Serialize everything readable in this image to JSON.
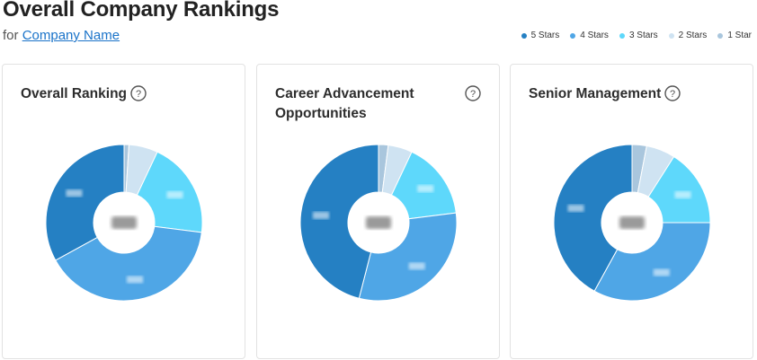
{
  "page": {
    "title": "Overall Company Rankings",
    "subtitle_prefix": "for",
    "company_link": "Company Name"
  },
  "legend": [
    {
      "label": "5 Stars",
      "color": "#2580c3"
    },
    {
      "label": "4 Stars",
      "color": "#4fa6e6"
    },
    {
      "label": "3 Stars",
      "color": "#5ed8fb"
    },
    {
      "label": "2 Stars",
      "color": "#cfe3f2"
    },
    {
      "label": "1 Star",
      "color": "#a9c6dd"
    }
  ],
  "cards": [
    {
      "title": "Overall Ranking",
      "help_icon": "question-circle-icon"
    },
    {
      "title": "Career Advancement Opportunities",
      "help_icon": "question-circle-icon"
    },
    {
      "title": "Senior Management",
      "help_icon": "question-circle-icon"
    }
  ],
  "chart_data": [
    {
      "type": "pie",
      "title": "Overall Ranking",
      "categories": [
        "5 Stars",
        "4 Stars",
        "3 Stars",
        "2 Stars",
        "1 Star"
      ],
      "values": [
        33,
        40,
        20,
        6,
        1
      ],
      "colors": [
        "#2580c3",
        "#4fa6e6",
        "#5ed8fb",
        "#cfe3f2",
        "#a9c6dd"
      ]
    },
    {
      "type": "pie",
      "title": "Career Advancement Opportunities",
      "categories": [
        "5 Stars",
        "4 Stars",
        "3 Stars",
        "2 Stars",
        "1 Star"
      ],
      "values": [
        46,
        31,
        16,
        5,
        2
      ],
      "colors": [
        "#2580c3",
        "#4fa6e6",
        "#5ed8fb",
        "#cfe3f2",
        "#a9c6dd"
      ]
    },
    {
      "type": "pie",
      "title": "Senior Management",
      "categories": [
        "5 Stars",
        "4 Stars",
        "3 Stars",
        "2 Stars",
        "1 Star"
      ],
      "values": [
        42,
        33,
        16,
        6,
        3
      ],
      "colors": [
        "#2580c3",
        "#4fa6e6",
        "#5ed8fb",
        "#cfe3f2",
        "#a9c6dd"
      ]
    }
  ]
}
